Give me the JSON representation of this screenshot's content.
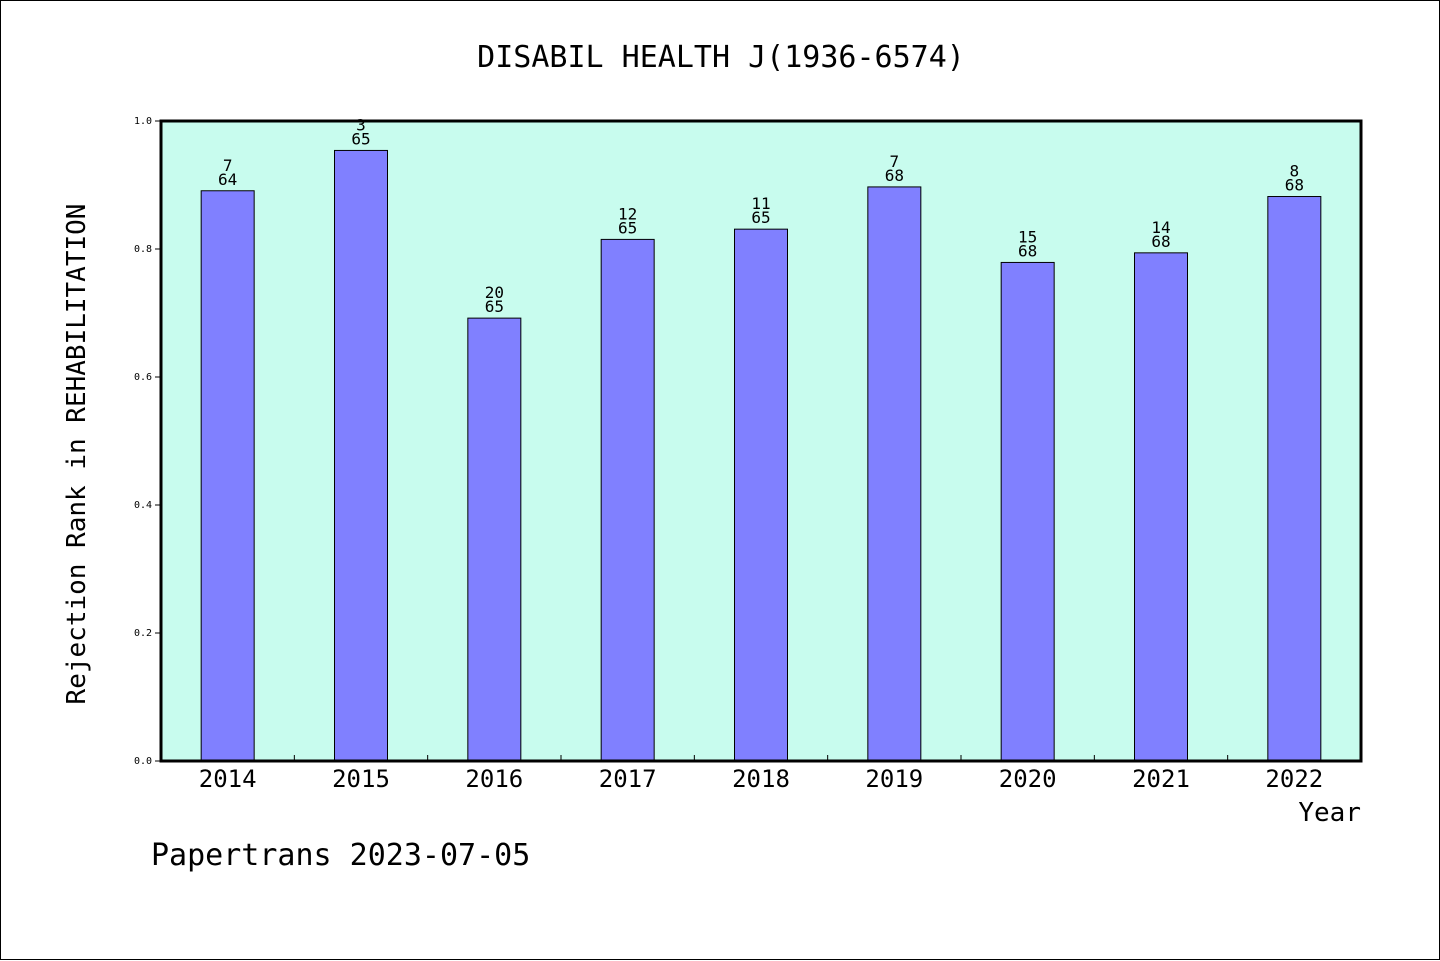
{
  "chart_data": {
    "type": "bar",
    "title": "DISABIL HEALTH J(1936-6574)",
    "xlabel": "Year",
    "ylabel": "Rejection Rank in REHABILITATION",
    "categories": [
      "2014",
      "2015",
      "2016",
      "2017",
      "2018",
      "2019",
      "2020",
      "2021",
      "2022"
    ],
    "values": [
      0.891,
      0.954,
      0.692,
      0.815,
      0.831,
      0.897,
      0.779,
      0.794,
      0.882
    ],
    "annotations": [
      {
        "top": "7",
        "bottom": "64"
      },
      {
        "top": "3",
        "bottom": "65"
      },
      {
        "top": "20",
        "bottom": "65"
      },
      {
        "top": "12",
        "bottom": "65"
      },
      {
        "top": "11",
        "bottom": "65"
      },
      {
        "top": "7",
        "bottom": "68"
      },
      {
        "top": "15",
        "bottom": "68"
      },
      {
        "top": "14",
        "bottom": "68"
      },
      {
        "top": "8",
        "bottom": "68"
      }
    ],
    "ylim": [
      0,
      1.0
    ],
    "yticks": [
      "0.0",
      "0.2",
      "0.4",
      "0.6",
      "0.8",
      "1.0"
    ],
    "grid": false,
    "colors": {
      "plot_background": "#c8fcee",
      "bar_fill": "#8080ff",
      "bar_stroke": "#000000"
    }
  },
  "footer": "Papertrans 2023-07-05"
}
